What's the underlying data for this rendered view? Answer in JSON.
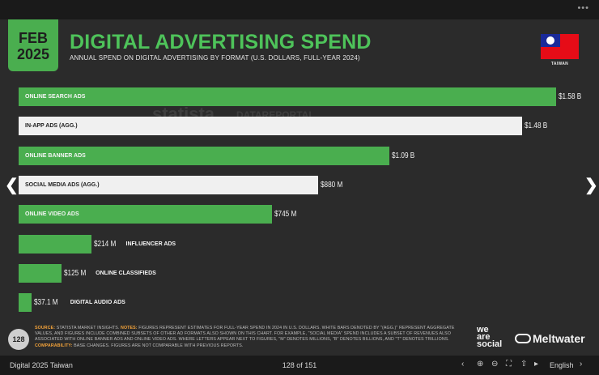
{
  "header": {
    "badge_month": "FEB",
    "badge_year": "2025",
    "title": "DIGITAL ADVERTISING SPEND",
    "subtitle": "ANNUAL SPEND ON DIGITAL ADVERTISING BY FORMAT (U.S. DOLLARS, FULL-YEAR 2024)",
    "country_label": "TAIWAN"
  },
  "watermarks": {
    "statista": "statista",
    "datareportal": "DATAREPORTAL"
  },
  "chart_data": {
    "type": "bar",
    "orientation": "horizontal",
    "title": "DIGITAL ADVERTISING SPEND",
    "subtitle": "ANNUAL SPEND ON DIGITAL ADVERTISING BY FORMAT (U.S. DOLLARS, FULL-YEAR 2024)",
    "unit": "USD",
    "grid": false,
    "categories": [
      "ONLINE SEARCH ADS",
      "IN-APP ADS (AGG.)",
      "ONLINE BANNER ADS",
      "SOCIAL MEDIA ADS (AGG.)",
      "ONLINE VIDEO ADS",
      "INFLUENCER ADS",
      "ONLINE CLASSIFIEDS",
      "DIGITAL AUDIO ADS"
    ],
    "values": [
      1580000000,
      1480000000,
      1090000000,
      880000000,
      745000000,
      214000000,
      125000000,
      37100000
    ],
    "value_labels": [
      "$1.58 B",
      "$1.48 B",
      "$1.09 B",
      "$880 M",
      "$745 M",
      "$214 M",
      "$125 M",
      "$37.1 M"
    ],
    "aggregate": [
      false,
      true,
      false,
      true,
      false,
      false,
      false,
      false
    ],
    "colors": {
      "standard": "#4aae4f",
      "aggregate": "#f0f0f0"
    }
  },
  "footnote": {
    "source_label": "SOURCE:",
    "source_text": " STATISTA MARKET INSIGHTS. ",
    "notes_label": "NOTES:",
    "notes_text": " FIGURES REPRESENT ESTIMATES FOR FULL-YEAR SPEND IN 2024 IN U.S. DOLLARS. WHITE BARS DENOTED BY \"(AGG.)\" REPRESENT AGGREGATE VALUES, AND FIGURES INCLUDE COMBINED SUBSETS OF OTHER AD FORMATS ALSO SHOWN ON THIS CHART. FOR EXAMPLE, \"SOCIAL MEDIA\" SPEND INCLUDES A SUBSET OF REVENUES ALSO ASSOCIATED WITH ONLINE BANNER ADS AND ONLINE VIDEO ADS. WHERE LETTERS APPEAR NEXT TO FIGURES, \"M\" DENOTES MILLIONS, \"B\" DENOTES BILLIONS, AND \"T\" DENOTES TRILLIONS. ",
    "comparability_label": "COMPARABILITY:",
    "comparability_text": " BASE CHANGES. FIGURES ARE NOT COMPARABLE WITH PREVIOUS REPORTS."
  },
  "slide_number": "128",
  "logos": {
    "we": "we",
    "are": "are",
    "social": "social",
    "meltwater": "Meltwater"
  },
  "viewer": {
    "doc_title": "Digital 2025 Taiwan",
    "page_counter": "128 of 151",
    "language": "English",
    "menu_dots": "•••"
  },
  "icons": [
    "zoom-in-icon",
    "zoom-out-icon",
    "fullscreen-icon",
    "share-icon",
    "embed-icon",
    "chevron-left-icon",
    "chevron-right-icon"
  ]
}
